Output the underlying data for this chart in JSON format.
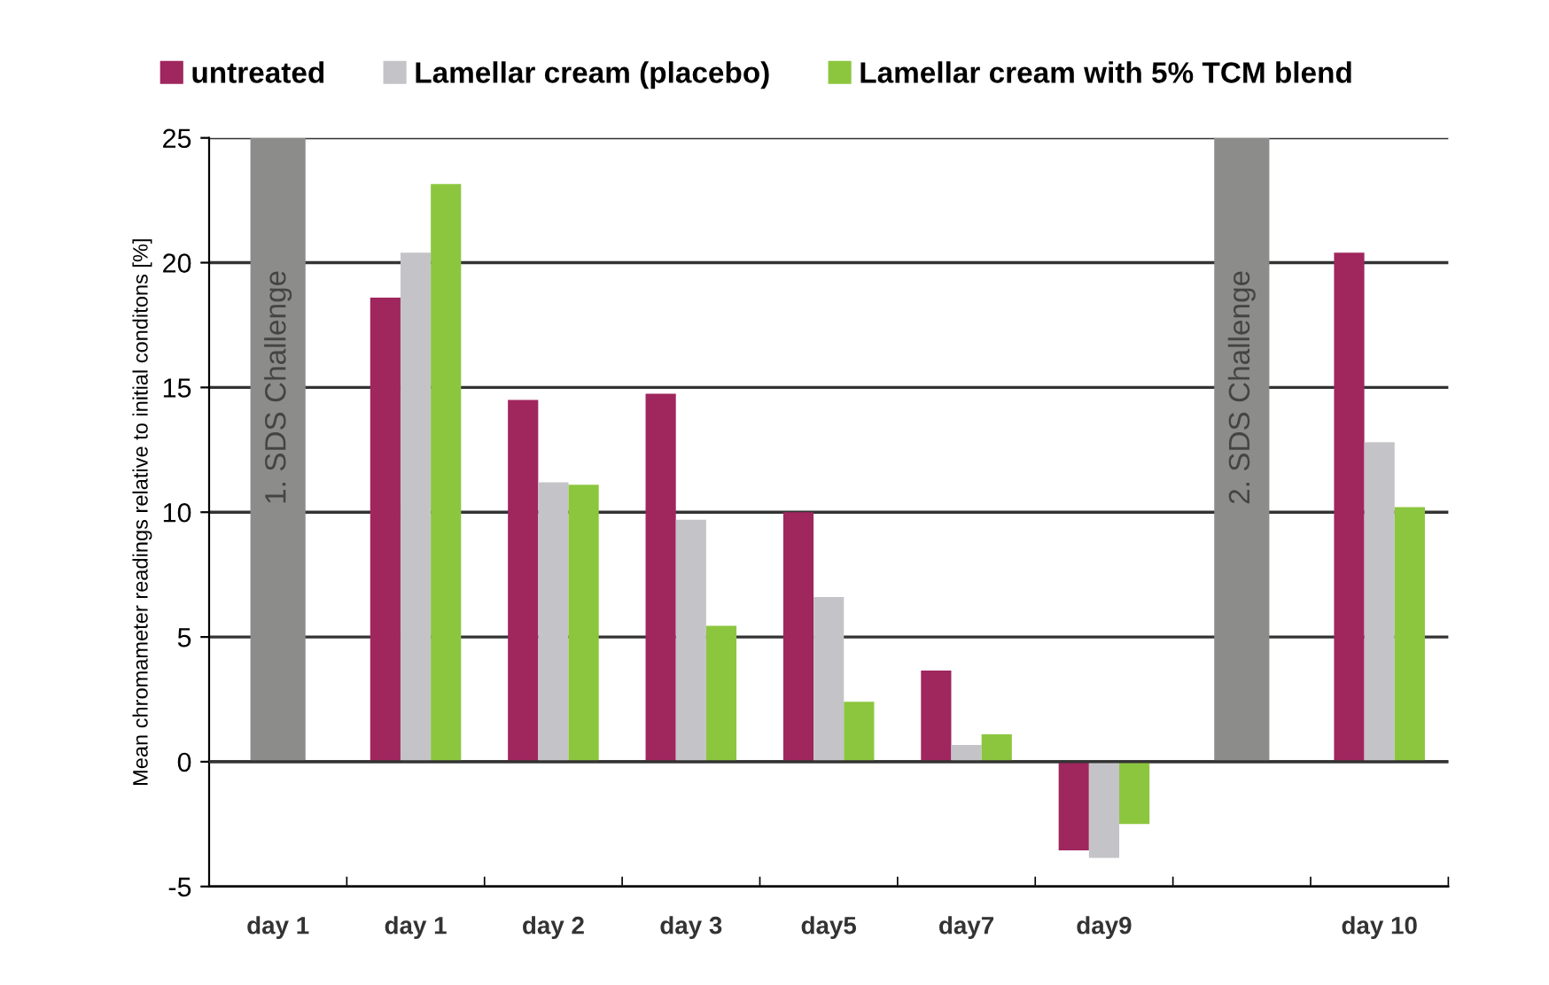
{
  "chart_data": {
    "type": "bar",
    "ylabel": "Mean chromameter readings relative to initial conditons [%]",
    "categories": [
      "day 1",
      "day 1",
      "day 2",
      "day 3",
      "day5",
      "day7",
      "day9",
      null,
      "day 10"
    ],
    "series": [
      {
        "color": "#8c8c8a",
        "values": [
          25,
          null,
          null,
          null,
          null,
          null,
          null,
          25,
          null
        ]
      },
      {
        "name": "untreated",
        "color": "#a0265e",
        "values": [
          null,
          18.6,
          14.5,
          14.75,
          10.0,
          3.65,
          -3.55,
          null,
          20.4
        ]
      },
      {
        "name": "Lamellar cream (placebo)",
        "color": "#c4c4c8",
        "values": [
          null,
          20.4,
          11.2,
          9.7,
          6.6,
          0.67,
          -3.85,
          null,
          12.8
        ]
      },
      {
        "name": "Lamellar cream with 5% TCM blend",
        "color": "#8cc63f",
        "values": [
          null,
          23.15,
          11.1,
          5.45,
          2.4,
          1.1,
          -2.5,
          null,
          10.2
        ]
      }
    ],
    "ylim": [
      -5,
      25
    ],
    "yticks": [
      -5,
      0,
      5,
      10,
      15,
      20,
      25
    ],
    "annotations": [
      "1. SDS Challenge",
      "2. SDS Challenge"
    ],
    "grid": "y",
    "legend": "top"
  }
}
